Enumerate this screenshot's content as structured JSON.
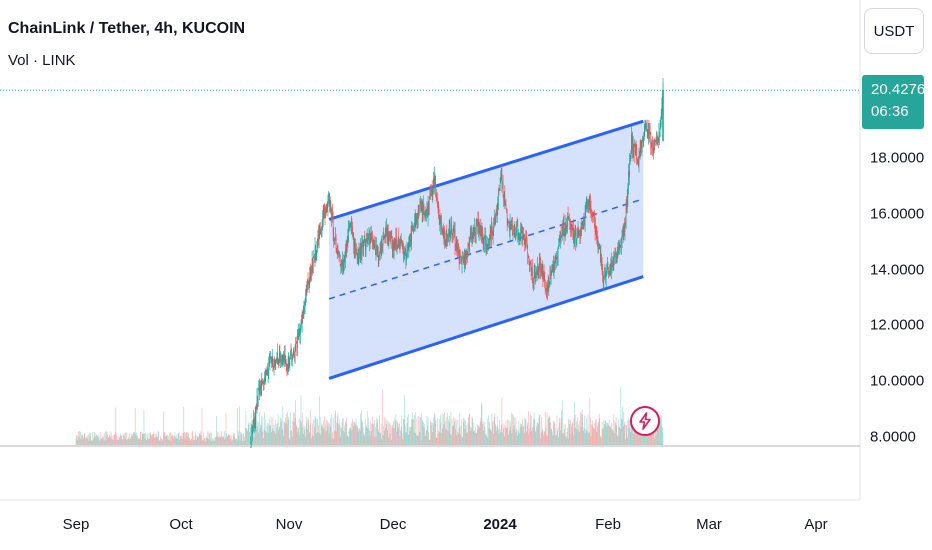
{
  "header": {
    "title": "ChainLink / Tether, 4h, KUCOIN",
    "volume_label": "Vol · LINK"
  },
  "currency_button": "USDT",
  "last_price": {
    "value": "20.4276",
    "countdown": "06:36",
    "color": "#26a69a"
  },
  "icons": {
    "alert": "lightning-icon"
  },
  "colors": {
    "channel_line": "#2962ff",
    "channel_fill": "#cfdcfa",
    "up": "#26a69a",
    "down": "#ef5350",
    "alert": "#d81b60"
  },
  "chart_data": {
    "type": "candlestick",
    "title": "ChainLink / Tether, 4h, KUCOIN",
    "y_axis": {
      "ticks": [
        "8.0000",
        "10.0000",
        "12.0000",
        "14.0000",
        "16.0000",
        "18.0000"
      ],
      "ylim": [
        6.0,
        21.2
      ]
    },
    "x_axis": {
      "ticks": [
        {
          "label": "Sep",
          "day": 0
        },
        {
          "label": "Oct",
          "day": 30
        },
        {
          "label": "Nov",
          "day": 61
        },
        {
          "label": "Dec",
          "day": 91
        },
        {
          "label": "2024",
          "day": 122,
          "bold": true
        },
        {
          "label": "Feb",
          "day": 153
        },
        {
          "label": "Mar",
          "day": 182
        },
        {
          "label": "Apr",
          "day": 213
        }
      ]
    },
    "price_path": [
      [
        0,
        6.3
      ],
      [
        45,
        6.3
      ],
      [
        48,
        6.4
      ],
      [
        52,
        9.6
      ],
      [
        55,
        10.6
      ],
      [
        58,
        10.9
      ],
      [
        60,
        10.6
      ],
      [
        62,
        11.0
      ],
      [
        64,
        12.0
      ],
      [
        66,
        13.5
      ],
      [
        68,
        14.6
      ],
      [
        70,
        15.8
      ],
      [
        72,
        16.5
      ],
      [
        74,
        14.8
      ],
      [
        76,
        14.1
      ],
      [
        78,
        15.7
      ],
      [
        80,
        14.4
      ],
      [
        82,
        14.9
      ],
      [
        84,
        15.2
      ],
      [
        86,
        14.5
      ],
      [
        88,
        15.4
      ],
      [
        90,
        14.9
      ],
      [
        92,
        15.0
      ],
      [
        94,
        14.5
      ],
      [
        96,
        15.4
      ],
      [
        98,
        16.2
      ],
      [
        100,
        16.1
      ],
      [
        102,
        17.2
      ],
      [
        103,
        16.0
      ],
      [
        105,
        15.0
      ],
      [
        107,
        15.5
      ],
      [
        109,
        14.5
      ],
      [
        111,
        14.4
      ],
      [
        113,
        15.5
      ],
      [
        115,
        15.5
      ],
      [
        117,
        14.8
      ],
      [
        119,
        15.7
      ],
      [
        121,
        17.2
      ],
      [
        123,
        15.6
      ],
      [
        126,
        15.3
      ],
      [
        128,
        15.1
      ],
      [
        130,
        13.6
      ],
      [
        132,
        14.2
      ],
      [
        134,
        13.3
      ],
      [
        136,
        14.2
      ],
      [
        138,
        15.3
      ],
      [
        140,
        15.7
      ],
      [
        142,
        15.1
      ],
      [
        144,
        15.6
      ],
      [
        146,
        16.5
      ],
      [
        148,
        15.4
      ],
      [
        150,
        13.8
      ],
      [
        152,
        14.0
      ],
      [
        154,
        14.6
      ],
      [
        156,
        15.4
      ],
      [
        158,
        18.6
      ],
      [
        160,
        18.0
      ],
      [
        162,
        19.1
      ],
      [
        164,
        18.4
      ],
      [
        166,
        18.8
      ],
      [
        167,
        20.43
      ]
    ],
    "channel": {
      "upper": {
        "start": [
          72.0,
          15.8
        ],
        "end": [
          161.4,
          19.32
        ]
      },
      "lower": {
        "start": [
          72.0,
          10.1
        ],
        "end": [
          161.4,
          13.75
        ]
      },
      "median": "dashed"
    },
    "last_price": 20.4276
  }
}
